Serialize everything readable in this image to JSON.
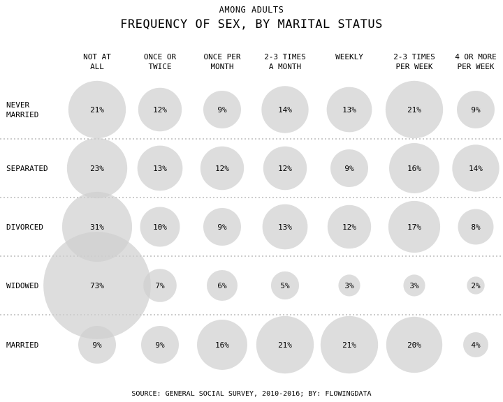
{
  "header": {
    "subtitle": "AMONG ADULTS",
    "title": "FREQUENCY OF SEX, BY MARITAL STATUS"
  },
  "footer": {
    "source": "SOURCE: GENERAL SOCIAL SURVEY, 2010-2016; BY: FLOWINGDATA"
  },
  "chart_data": {
    "type": "bubble-matrix",
    "title": "FREQUENCY OF SEX, BY MARITAL STATUS",
    "subtitle": "AMONG ADULTS",
    "unit": "%",
    "columns": [
      [
        "NOT AT",
        "ALL"
      ],
      [
        "ONCE OR",
        "TWICE"
      ],
      [
        "ONCE PER",
        "MONTH"
      ],
      [
        "2-3 TIMES",
        "A MONTH"
      ],
      [
        "WEEKLY"
      ],
      [
        "2-3 TIMES",
        "PER WEEK"
      ],
      [
        "4 OR MORE",
        "PER WEEK"
      ]
    ],
    "rows": [
      [
        "NEVER",
        "MARRIED"
      ],
      [
        "SEPARATED"
      ],
      [
        "DIVORCED"
      ],
      [
        "WIDOWED"
      ],
      [
        "MARRIED"
      ]
    ],
    "values": [
      [
        21,
        12,
        9,
        14,
        13,
        21,
        9
      ],
      [
        23,
        13,
        12,
        12,
        9,
        16,
        14
      ],
      [
        31,
        10,
        9,
        13,
        12,
        17,
        8
      ],
      [
        73,
        7,
        6,
        5,
        3,
        3,
        2
      ],
      [
        9,
        9,
        16,
        21,
        21,
        20,
        4
      ]
    ],
    "bubble_color": "#cfcfcf",
    "grid": "dotted row separators"
  }
}
